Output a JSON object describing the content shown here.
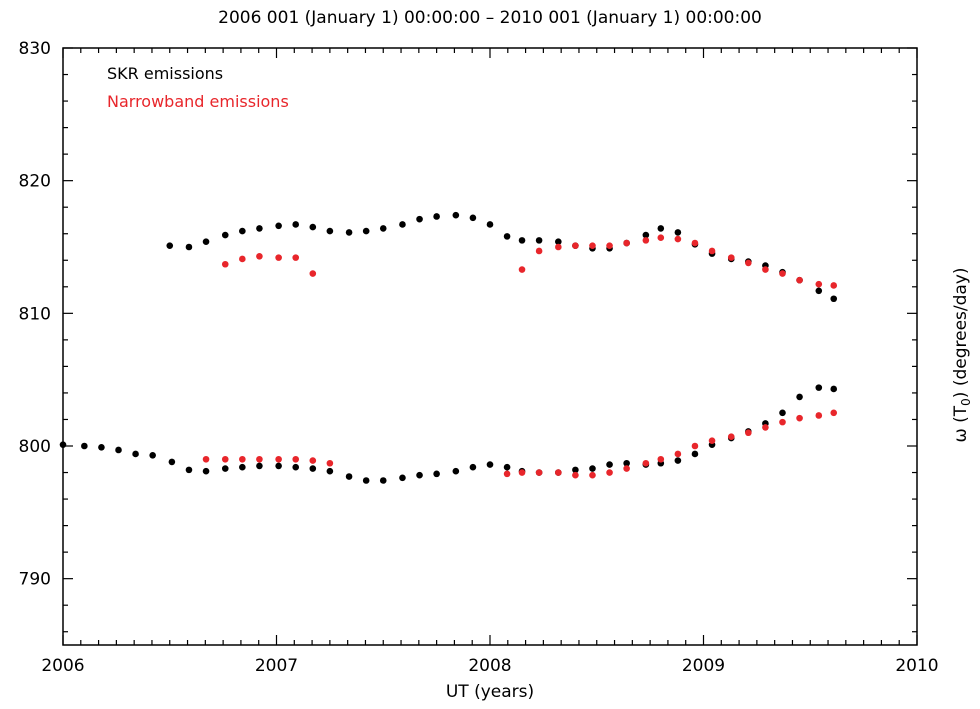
{
  "chart_data": {
    "type": "scatter",
    "title": "2006 001 (January 1) 00:00:00 – 2010 001 (January 1) 00:00:00",
    "xlabel": "UT (years)",
    "ylabel": {
      "prefix": "ω (T",
      "subscript": "0",
      "suffix": ")  (degrees/day)"
    },
    "xlim": [
      2006,
      2010
    ],
    "ylim": [
      785,
      830
    ],
    "x_ticks": [
      "2006",
      "2007",
      "2008",
      "2009",
      "2010"
    ],
    "y_ticks": [
      "790",
      "800",
      "810",
      "820",
      "830"
    ],
    "grid": false,
    "legend_position": "top-left",
    "series": [
      {
        "name": "SKR emissions",
        "color": "#000000",
        "points": [
          [
            2006.5,
            815.1
          ],
          [
            2006.59,
            815.0
          ],
          [
            2006.67,
            815.4
          ],
          [
            2006.76,
            815.9
          ],
          [
            2006.84,
            816.2
          ],
          [
            2006.92,
            816.4
          ],
          [
            2007.01,
            816.6
          ],
          [
            2007.09,
            816.7
          ],
          [
            2007.17,
            816.5
          ],
          [
            2007.25,
            816.2
          ],
          [
            2007.34,
            816.1
          ],
          [
            2007.42,
            816.2
          ],
          [
            2007.5,
            816.4
          ],
          [
            2007.59,
            816.7
          ],
          [
            2007.67,
            817.1
          ],
          [
            2007.75,
            817.3
          ],
          [
            2007.84,
            817.4
          ],
          [
            2007.92,
            817.2
          ],
          [
            2008.0,
            816.7
          ],
          [
            2008.08,
            815.8
          ],
          [
            2008.15,
            815.5
          ],
          [
            2008.23,
            815.5
          ],
          [
            2008.32,
            815.4
          ],
          [
            2008.4,
            815.1
          ],
          [
            2008.48,
            814.9
          ],
          [
            2008.56,
            814.9
          ],
          [
            2008.64,
            815.3
          ],
          [
            2008.73,
            815.9
          ],
          [
            2008.8,
            816.4
          ],
          [
            2008.88,
            816.1
          ],
          [
            2008.96,
            815.2
          ],
          [
            2009.04,
            814.5
          ],
          [
            2009.13,
            814.1
          ],
          [
            2009.21,
            813.9
          ],
          [
            2009.29,
            813.6
          ],
          [
            2009.37,
            813.1
          ],
          [
            2009.45,
            812.5
          ],
          [
            2009.54,
            811.7
          ],
          [
            2009.61,
            811.1
          ],
          [
            2006.0,
            800.1
          ],
          [
            2006.1,
            800.0
          ],
          [
            2006.18,
            799.9
          ],
          [
            2006.26,
            799.7
          ],
          [
            2006.34,
            799.4
          ],
          [
            2006.42,
            799.3
          ],
          [
            2006.51,
            798.8
          ],
          [
            2006.59,
            798.2
          ],
          [
            2006.67,
            798.1
          ],
          [
            2006.76,
            798.3
          ],
          [
            2006.84,
            798.4
          ],
          [
            2006.92,
            798.5
          ],
          [
            2007.01,
            798.5
          ],
          [
            2007.09,
            798.4
          ],
          [
            2007.17,
            798.3
          ],
          [
            2007.25,
            798.1
          ],
          [
            2007.34,
            797.7
          ],
          [
            2007.42,
            797.4
          ],
          [
            2007.5,
            797.4
          ],
          [
            2007.59,
            797.6
          ],
          [
            2007.67,
            797.8
          ],
          [
            2007.75,
            797.9
          ],
          [
            2007.84,
            798.1
          ],
          [
            2007.92,
            798.4
          ],
          [
            2008.0,
            798.6
          ],
          [
            2008.08,
            798.4
          ],
          [
            2008.15,
            798.1
          ],
          [
            2008.23,
            798.0
          ],
          [
            2008.32,
            798.0
          ],
          [
            2008.4,
            798.2
          ],
          [
            2008.48,
            798.3
          ],
          [
            2008.56,
            798.6
          ],
          [
            2008.64,
            798.7
          ],
          [
            2008.73,
            798.6
          ],
          [
            2008.8,
            798.7
          ],
          [
            2008.88,
            798.9
          ],
          [
            2008.96,
            799.4
          ],
          [
            2009.04,
            800.1
          ],
          [
            2009.13,
            800.6
          ],
          [
            2009.21,
            801.1
          ],
          [
            2009.29,
            801.7
          ],
          [
            2009.37,
            802.5
          ],
          [
            2009.45,
            803.7
          ],
          [
            2009.54,
            804.4
          ],
          [
            2009.61,
            804.3
          ]
        ]
      },
      {
        "name": "Narrowband emissions",
        "color": "#e8262b",
        "points": [
          [
            2006.76,
            813.7
          ],
          [
            2006.84,
            814.1
          ],
          [
            2006.92,
            814.3
          ],
          [
            2007.01,
            814.2
          ],
          [
            2007.09,
            814.2
          ],
          [
            2007.17,
            813.0
          ],
          [
            2008.15,
            813.3
          ],
          [
            2008.23,
            814.7
          ],
          [
            2008.32,
            815.0
          ],
          [
            2008.4,
            815.1
          ],
          [
            2008.48,
            815.1
          ],
          [
            2008.56,
            815.1
          ],
          [
            2008.64,
            815.3
          ],
          [
            2008.73,
            815.5
          ],
          [
            2008.8,
            815.7
          ],
          [
            2008.88,
            815.6
          ],
          [
            2008.96,
            815.3
          ],
          [
            2009.04,
            814.7
          ],
          [
            2009.13,
            814.2
          ],
          [
            2009.21,
            813.8
          ],
          [
            2009.29,
            813.3
          ],
          [
            2009.37,
            813.0
          ],
          [
            2009.45,
            812.5
          ],
          [
            2009.54,
            812.2
          ],
          [
            2009.61,
            812.1
          ],
          [
            2006.67,
            799.0
          ],
          [
            2006.76,
            799.0
          ],
          [
            2006.84,
            799.0
          ],
          [
            2006.92,
            799.0
          ],
          [
            2007.01,
            799.0
          ],
          [
            2007.09,
            799.0
          ],
          [
            2007.17,
            798.9
          ],
          [
            2007.25,
            798.7
          ],
          [
            2008.08,
            797.9
          ],
          [
            2008.15,
            798.0
          ],
          [
            2008.23,
            798.0
          ],
          [
            2008.32,
            798.0
          ],
          [
            2008.4,
            797.8
          ],
          [
            2008.48,
            797.8
          ],
          [
            2008.56,
            798.0
          ],
          [
            2008.64,
            798.3
          ],
          [
            2008.73,
            798.7
          ],
          [
            2008.8,
            799.0
          ],
          [
            2008.88,
            799.4
          ],
          [
            2008.96,
            800.0
          ],
          [
            2009.04,
            800.4
          ],
          [
            2009.13,
            800.7
          ],
          [
            2009.21,
            801.0
          ],
          [
            2009.29,
            801.4
          ],
          [
            2009.37,
            801.8
          ],
          [
            2009.45,
            802.1
          ],
          [
            2009.54,
            802.3
          ],
          [
            2009.61,
            802.5
          ]
        ]
      }
    ]
  }
}
